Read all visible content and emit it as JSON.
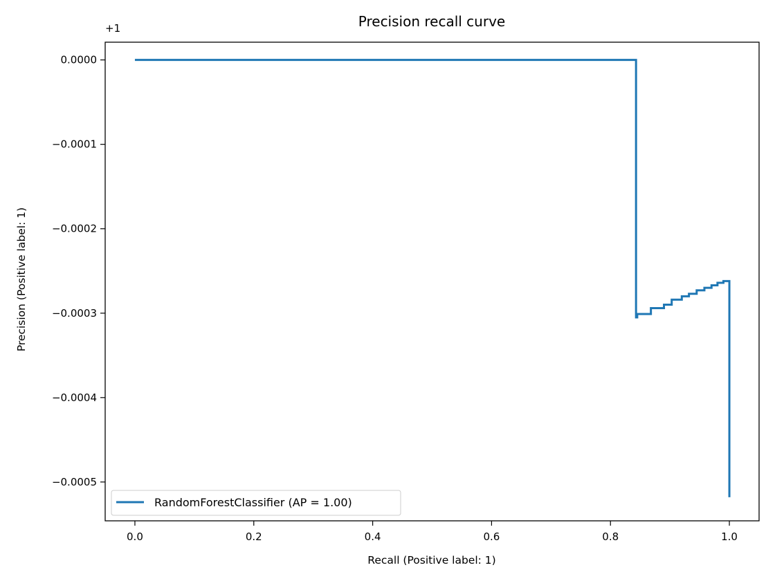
{
  "chart_data": {
    "type": "line",
    "title": "Precision recall curve",
    "xlabel": "Recall (Positive label: 1)",
    "ylabel": "Precision (Positive label: 1)",
    "y_offset_text": "+1",
    "xlim": [
      -0.05,
      1.05
    ],
    "ylim": [
      -0.000546,
      2.1e-05
    ],
    "x_ticks": [
      0.0,
      0.2,
      0.4,
      0.6,
      0.8,
      1.0
    ],
    "x_tick_labels": [
      "0.0",
      "0.2",
      "0.4",
      "0.6",
      "0.8",
      "1.0"
    ],
    "y_ticks": [
      0.0,
      -0.0001,
      -0.0002,
      -0.0003,
      -0.0004,
      -0.0005
    ],
    "y_tick_labels": [
      "0.0000",
      "−0.0001",
      "−0.0002",
      "−0.0003",
      "−0.0004",
      "−0.0005"
    ],
    "grid": false,
    "legend_position": "lower-left",
    "series": [
      {
        "name": "RandomForestClassifier (AP = 1.00)",
        "color": "#1f77b4",
        "drawstyle": "steps-post",
        "x": [
          0.0,
          0.843,
          0.843,
          0.845,
          0.845,
          0.868,
          0.868,
          0.89,
          0.89,
          0.903,
          0.903,
          0.92,
          0.92,
          0.932,
          0.932,
          0.945,
          0.945,
          0.958,
          0.958,
          0.97,
          0.97,
          0.98,
          0.98,
          0.99,
          0.99,
          1.0,
          1.0
        ],
        "y": [
          0.0,
          0.0,
          -0.000305,
          -0.000305,
          -0.000301,
          -0.000301,
          -0.000294,
          -0.000294,
          -0.00029,
          -0.00029,
          -0.000284,
          -0.000284,
          -0.00028,
          -0.00028,
          -0.000277,
          -0.000277,
          -0.000273,
          -0.000273,
          -0.00027,
          -0.00027,
          -0.000267,
          -0.000267,
          -0.000264,
          -0.000264,
          -0.000262,
          -0.000262,
          -0.000518
        ]
      }
    ]
  }
}
